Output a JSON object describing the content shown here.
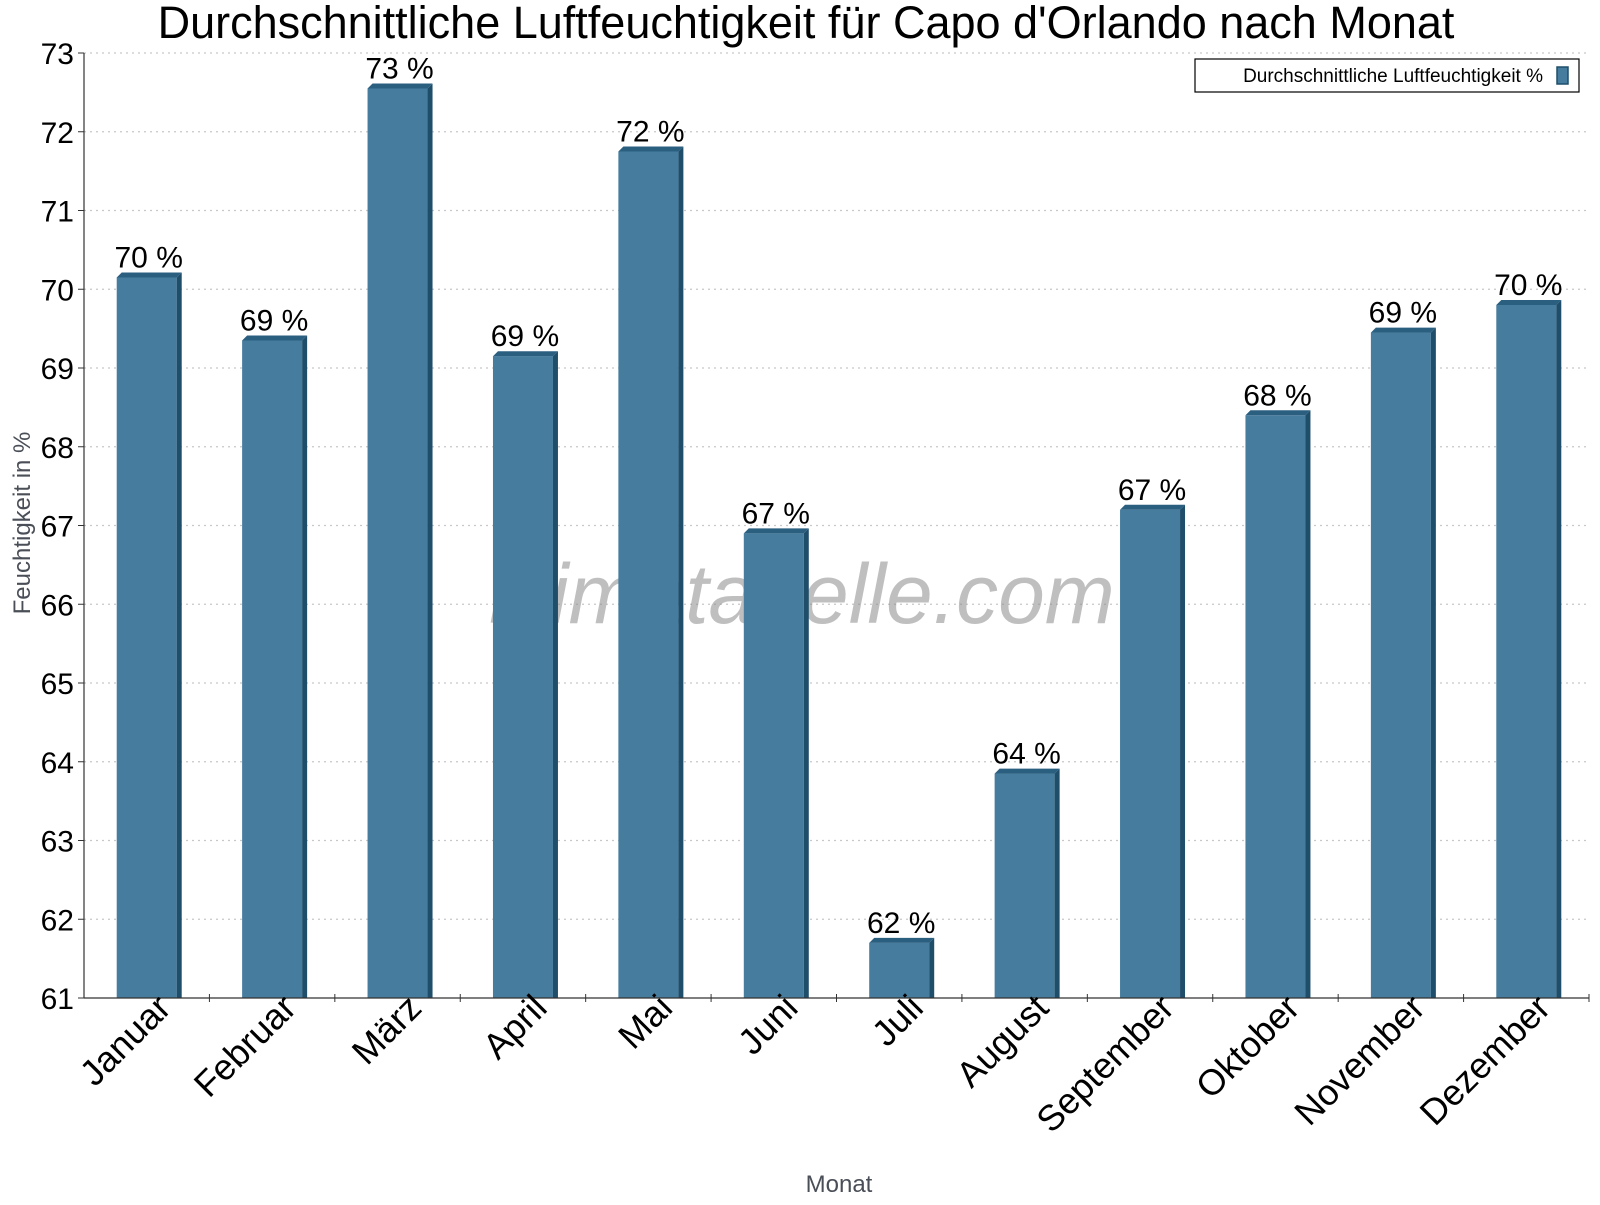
{
  "chart_data": {
    "type": "bar",
    "title": "Durchschnittliche Luftfeuchtigkeit für Capo d'Orlando nach Monat",
    "xlabel": "Monat",
    "ylabel": "Feuchtigkeit in %",
    "ylim": [
      61,
      73
    ],
    "yticks": [
      61,
      62,
      63,
      64,
      65,
      66,
      67,
      68,
      69,
      70,
      71,
      72,
      73
    ],
    "grid": true,
    "legend_position": "top-right",
    "categories": [
      "Januar",
      "Februar",
      "März",
      "April",
      "Mai",
      "Juni",
      "Juli",
      "August",
      "September",
      "Oktober",
      "November",
      "Dezember"
    ],
    "series": [
      {
        "name": "Durchschnittliche Luftfeuchtigkeit %",
        "values": [
          70.15,
          69.35,
          72.55,
          69.15,
          71.75,
          66.9,
          61.7,
          63.85,
          67.2,
          68.4,
          69.45,
          69.8
        ],
        "labels": [
          "70 %",
          "69 %",
          "73 %",
          "69 %",
          "72 %",
          "67 %",
          "62 %",
          "64 %",
          "67 %",
          "68 %",
          "69 %",
          "70 %"
        ]
      }
    ],
    "watermark": "klimatabelle.com",
    "colors": {
      "bar_front": "#467c9e",
      "bar_side": "#1f4e6b",
      "bar_top": "#2b5f80",
      "grid": "#c8c8c8",
      "axis": "#333333"
    }
  }
}
